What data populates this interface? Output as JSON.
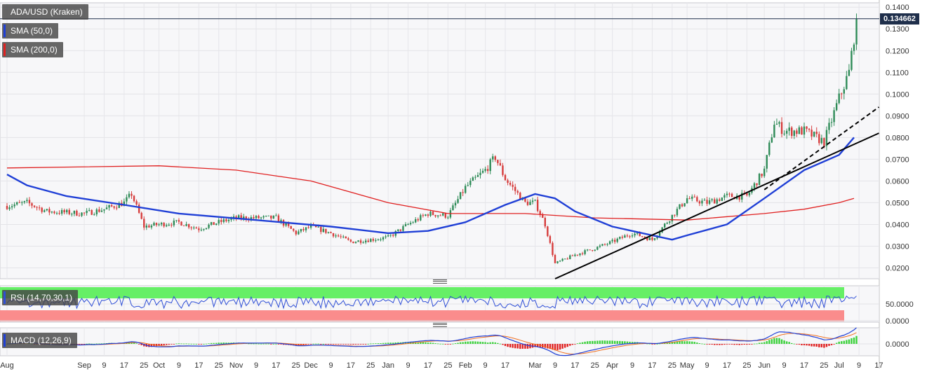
{
  "legend": {
    "instrument": "ADA/USD (Kraken)",
    "sma50": "SMA (50,0)",
    "sma200": "SMA (200,0)",
    "rsi": "RSI (14,70,30,1)",
    "macd": "MACD (12,26,9)"
  },
  "colors": {
    "up_candle": "#2e8b57",
    "down_candle": "#d63c3c",
    "sma50": "#1f3fd6",
    "sma200": "#e02020",
    "rsi_line": "#2f4fd6",
    "rsi_overbought_zone": "#66ef66",
    "rsi_oversold_zone": "#fa8c8c",
    "macd_line": "#1f3fd6",
    "signal_line": "#f07020",
    "trendline": "#000000"
  },
  "current_price": "0.134662",
  "chart_data": {
    "type": "candlestick",
    "price_axis": {
      "ticks": [
        "0.1400",
        "0.1300",
        "0.1200",
        "0.1100",
        "0.1000",
        "0.0900",
        "0.0800",
        "0.0700",
        "0.0600",
        "0.0500",
        "0.0400",
        "0.0300",
        "0.0200"
      ],
      "range": [
        0.015,
        0.142
      ]
    },
    "rsi_axis": {
      "ticks": [
        "50.0000",
        "0.0000"
      ]
    },
    "macd_axis": {
      "ticks": [
        "0.0000"
      ]
    },
    "x_axis_labels": [
      "Aug",
      "Sep",
      "9",
      "17",
      "25",
      "Oct",
      "9",
      "17",
      "25",
      "Nov",
      "9",
      "17",
      "25",
      "Dec",
      "9",
      "17",
      "25",
      "Jan",
      "9",
      "17",
      "25",
      "Feb",
      "9",
      "17",
      "Mar",
      "9",
      "17",
      "25",
      "Apr",
      "9",
      "17",
      "25",
      "May",
      "9",
      "17",
      "25",
      "Jun",
      "9",
      "17",
      "25",
      "Jul",
      "9",
      "17"
    ],
    "close_path": [
      [
        "Aug",
        0.0485
      ],
      [
        "Aug 9",
        0.05
      ],
      [
        "Aug 17",
        0.046
      ],
      [
        "Sep",
        0.045
      ],
      [
        "Sep 9",
        0.047
      ],
      [
        "Sep 17",
        0.05
      ],
      [
        "Sep 20",
        0.054
      ],
      [
        "Sep 25",
        0.039
      ],
      [
        "Oct",
        0.04
      ],
      [
        "Oct 9",
        0.041
      ],
      [
        "Oct 17",
        0.038
      ],
      [
        "Oct 25",
        0.041
      ],
      [
        "Nov",
        0.043
      ],
      [
        "Nov 9",
        0.043
      ],
      [
        "Nov 17",
        0.043
      ],
      [
        "Nov 25",
        0.036
      ],
      [
        "Dec",
        0.039
      ],
      [
        "Dec 9",
        0.036
      ],
      [
        "Dec 17",
        0.032
      ],
      [
        "Dec 25",
        0.033
      ],
      [
        "Jan",
        0.034
      ],
      [
        "Jan 9",
        0.04
      ],
      [
        "Jan 17",
        0.045
      ],
      [
        "Jan 25",
        0.044
      ],
      [
        "Feb",
        0.057
      ],
      [
        "Feb 9",
        0.065
      ],
      [
        "Feb 13",
        0.071
      ],
      [
        "Feb 17",
        0.061
      ],
      [
        "Feb 25",
        0.05
      ],
      [
        "Mar",
        0.05
      ],
      [
        "Mar 5",
        0.04
      ],
      [
        "Mar 9",
        0.022
      ],
      [
        "Mar 17",
        0.026
      ],
      [
        "Mar 25",
        0.029
      ],
      [
        "Apr",
        0.032
      ],
      [
        "Apr 9",
        0.036
      ],
      [
        "Apr 17",
        0.033
      ],
      [
        "Apr 25",
        0.044
      ],
      [
        "May",
        0.052
      ],
      [
        "May 9",
        0.05
      ],
      [
        "May 17",
        0.053
      ],
      [
        "May 25",
        0.053
      ],
      [
        "Jun",
        0.065
      ],
      [
        "Jun 5",
        0.087
      ],
      [
        "Jun 9",
        0.083
      ],
      [
        "Jun 17",
        0.083
      ],
      [
        "Jun 25",
        0.078
      ],
      [
        "Jul",
        0.098
      ],
      [
        "Jul 5",
        0.11
      ],
      [
        "Jul 8",
        0.134662
      ]
    ],
    "sma50_path": [
      [
        "Aug",
        0.063
      ],
      [
        "Aug 9",
        0.058
      ],
      [
        "Aug 25",
        0.053
      ],
      [
        "Sep 17",
        0.049
      ],
      [
        "Oct 9",
        0.045
      ],
      [
        "Nov 9",
        0.042
      ],
      [
        "Dec 9",
        0.039
      ],
      [
        "Jan",
        0.036
      ],
      [
        "Jan 17",
        0.037
      ],
      [
        "Feb",
        0.041
      ],
      [
        "Feb 17",
        0.049
      ],
      [
        "Mar",
        0.054
      ],
      [
        "Mar 9",
        0.052
      ],
      [
        "Mar 17",
        0.046
      ],
      [
        "Apr",
        0.039
      ],
      [
        "Apr 17",
        0.035
      ],
      [
        "Apr 25",
        0.033
      ],
      [
        "May",
        0.035
      ],
      [
        "May 17",
        0.04
      ],
      [
        "Jun",
        0.052
      ],
      [
        "Jun 17",
        0.065
      ],
      [
        "Jul",
        0.072
      ],
      [
        "Jul 7",
        0.08
      ]
    ],
    "sma200_path": [
      [
        "Aug",
        0.066
      ],
      [
        "Oct",
        0.067
      ],
      [
        "Nov",
        0.065
      ],
      [
        "Dec",
        0.06
      ],
      [
        "Jan",
        0.05
      ],
      [
        "Jan 25",
        0.045
      ],
      [
        "Feb 25",
        0.045
      ],
      [
        "Mar 25",
        0.043
      ],
      [
        "May",
        0.042
      ],
      [
        "Jun",
        0.045
      ],
      [
        "Jun 17",
        0.047
      ],
      [
        "Jul",
        0.05
      ],
      [
        "Jul 7",
        0.052
      ]
    ],
    "trendlines": [
      {
        "style": "solid",
        "from": [
          "Mar 9",
          0.015
        ],
        "to": [
          "Jul 17",
          0.082
        ]
      },
      {
        "style": "dashed",
        "from": [
          "Jun",
          0.056
        ],
        "to": [
          "Jul 17",
          0.094
        ]
      }
    ],
    "grid": true
  }
}
